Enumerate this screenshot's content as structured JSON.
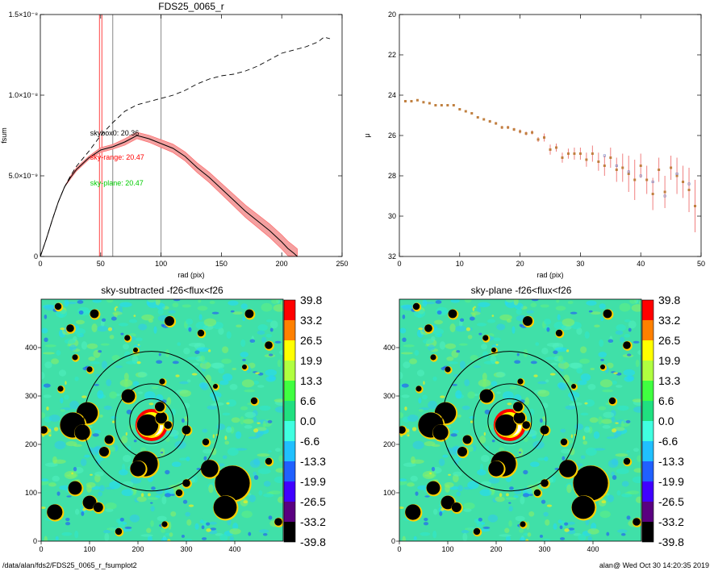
{
  "footer": {
    "path": "/data/alan/fds2/FDS25_0065_r_fsumplot2",
    "user_timestamp": "alan@  Wed Oct 30 14:20:35 2019"
  },
  "colors": {
    "profile": "#000000",
    "error_band": "#f4a0a0",
    "error_line": "#ff6060",
    "total": "#000000",
    "sky_range": "#ff0000",
    "sky_plane": "#00cc00",
    "skybox": "#000000",
    "mu_point_sky": "#c08040",
    "mu_err": "#f08080",
    "mu_point_plane": "#7080c0"
  },
  "chart_data": [
    {
      "type": "line",
      "title": "FDS25_0065_r",
      "xlabel": "rad (pix)",
      "ylabel": "fsum",
      "xlim": [
        0,
        250
      ],
      "ylim": [
        0,
        1.5e-08
      ],
      "x_ticks": [
        0,
        50,
        100,
        150,
        200,
        250
      ],
      "x_tick_labels": [
        "0",
        "50",
        "100",
        "150",
        "200",
        "250"
      ],
      "y_ticks": [
        0,
        5e-09,
        1e-08,
        1.5e-08
      ],
      "y_tick_labels": [
        "0",
        "5.0×10⁻⁹",
        "1.0×10⁻⁸",
        "1.5×10⁻⁸"
      ],
      "vertical_lines": [
        {
          "x": 49,
          "color": "#ff4444"
        },
        {
          "x": 51,
          "color": "#ff4444"
        },
        {
          "x": 60,
          "color": "#888888"
        },
        {
          "x": 100,
          "color": "#888888"
        }
      ],
      "annotations": [
        {
          "text": "skybox0: 20.36",
          "x": 58,
          "y": 7.5e-09,
          "color": "#000000"
        },
        {
          "text": "sky-range: 20.47",
          "x": 58,
          "y": 6e-09,
          "color": "#ff0000"
        },
        {
          "text": "sky-plane: 20.47",
          "x": 58,
          "y": 4.4e-09,
          "color": "#00cc00"
        }
      ],
      "series": [
        {
          "style": "dashed",
          "x": [
            0,
            5,
            10,
            15,
            20,
            25,
            30,
            40,
            50,
            60,
            70,
            80,
            90,
            100,
            110,
            120,
            130,
            140,
            150,
            160,
            170,
            180,
            190,
            200,
            210,
            220,
            230,
            235,
            240
          ],
          "y": [
            0,
            1.1e-09,
            2.3e-09,
            3.4e-09,
            4.3e-09,
            5e-09,
            5.6e-09,
            6.5e-09,
            7.5e-09,
            8.3e-09,
            9e-09,
            9.4e-09,
            9.6e-09,
            9.8e-09,
            1e-08,
            1.03e-08,
            1.07e-08,
            1.1e-08,
            1.12e-08,
            1.13e-08,
            1.15e-08,
            1.18e-08,
            1.22e-08,
            1.26e-08,
            1.28e-08,
            1.3e-08,
            1.33e-08,
            1.36e-08,
            1.35e-08
          ]
        },
        {
          "style": "solid",
          "x": [
            0,
            5,
            10,
            15,
            20,
            25,
            30,
            40,
            50,
            60,
            70,
            80,
            90,
            100,
            110,
            120,
            130,
            140,
            150,
            160,
            170,
            180,
            190,
            200,
            205,
            210,
            213
          ],
          "y": [
            0,
            1.1e-09,
            2.3e-09,
            3.4e-09,
            4.3e-09,
            4.9e-09,
            5.4e-09,
            6.1e-09,
            6.6e-09,
            6.8e-09,
            7.1e-09,
            7.5e-09,
            7.3e-09,
            7e-09,
            6.7e-09,
            6.2e-09,
            5.5e-09,
            4.9e-09,
            4.2e-09,
            3.5e-09,
            2.8e-09,
            2.2e-09,
            1.6e-09,
            9e-10,
            5e-10,
            2e-10,
            0
          ],
          "error": [
            0,
            0,
            0,
            0,
            0,
            1e-10,
            1e-10,
            1e-10,
            1.5e-10,
            1.5e-10,
            2e-10,
            2e-10,
            2.2e-10,
            2.4e-10,
            2.6e-10,
            2.8e-10,
            3e-10,
            3.2e-10,
            3.4e-10,
            3.6e-10,
            3.8e-10,
            4e-10,
            4.2e-10,
            4.4e-10,
            4.5e-10,
            4.6e-10,
            4.7e-10
          ]
        }
      ]
    },
    {
      "type": "scatter",
      "xlabel": "rad (pix)",
      "ylabel": "μ",
      "xlim": [
        0,
        50
      ],
      "ylim": [
        32,
        20
      ],
      "x_ticks": [
        0,
        10,
        20,
        30,
        40,
        50
      ],
      "y_ticks": [
        20,
        22,
        24,
        26,
        28,
        30,
        32
      ],
      "series": [
        {
          "x": [
            1,
            2,
            3,
            4,
            5,
            6,
            7,
            8,
            9,
            10,
            11,
            12,
            13,
            14,
            15,
            16,
            17,
            18,
            19,
            20,
            21,
            22,
            23,
            24,
            25,
            26,
            27,
            28,
            29,
            30,
            31,
            32,
            33,
            34,
            35,
            36,
            37,
            38,
            39,
            40,
            41,
            42,
            43,
            44,
            45,
            46,
            47,
            48,
            49
          ],
          "y": [
            24.3,
            24.3,
            24.25,
            24.35,
            24.4,
            24.5,
            24.5,
            24.5,
            24.5,
            24.7,
            24.8,
            24.9,
            25.1,
            25.2,
            25.3,
            25.4,
            25.6,
            25.6,
            25.7,
            25.8,
            25.9,
            25.85,
            26.2,
            26.1,
            26.7,
            26.6,
            27.1,
            26.9,
            26.9,
            26.9,
            27.2,
            26.9,
            27.3,
            27.5,
            27.1,
            27.7,
            27.6,
            27.9,
            28.2,
            27.5,
            28.2,
            28.9,
            27.7,
            28.8,
            27.6,
            28.0,
            28.3,
            28.7,
            29.5
          ],
          "err": [
            0.05,
            0.05,
            0.05,
            0.05,
            0.05,
            0.05,
            0.05,
            0.05,
            0.05,
            0.05,
            0.05,
            0.06,
            0.06,
            0.06,
            0.07,
            0.07,
            0.08,
            0.08,
            0.08,
            0.1,
            0.1,
            0.1,
            0.12,
            0.2,
            0.25,
            0.2,
            0.25,
            0.25,
            0.3,
            0.3,
            0.35,
            0.4,
            0.45,
            0.5,
            0.5,
            0.6,
            0.7,
            0.9,
            1.0,
            0.6,
            0.7,
            0.8,
            0.6,
            0.8,
            0.6,
            0.9,
            0.8,
            1.1,
            1.3
          ]
        },
        {
          "x": [
            34,
            36,
            38,
            40,
            42,
            44,
            46,
            48
          ],
          "y": [
            27.0,
            27.5,
            27.8,
            28.0,
            28.3,
            29.0,
            27.9,
            28.4
          ]
        }
      ]
    },
    {
      "type": "heatmap",
      "title": "sky-subtracted -f26<flux<f26",
      "xlim": [
        0,
        500
      ],
      "ylim": [
        0,
        500
      ],
      "x_ticks": [
        0,
        100,
        200,
        300,
        400
      ],
      "y_ticks": [
        0,
        100,
        200,
        300,
        400
      ],
      "colorbar": {
        "labels": [
          "39.8",
          "33.2",
          "26.5",
          "19.9",
          "13.3",
          "6.6",
          "0.0",
          "-6.6",
          "-13.3",
          "-19.9",
          "-26.5",
          "-33.2",
          "-39.8"
        ],
        "colors": [
          "#ff0000",
          "#ff8000",
          "#ffff00",
          "#b0ff40",
          "#40ff40",
          "#20e080",
          "#40ffe0",
          "#20c0ff",
          "#2060ff",
          "#4000ff",
          "#5a0080",
          "#000000"
        ]
      }
    },
    {
      "type": "heatmap",
      "title": "sky-plane -f26<flux<f26",
      "xlim": [
        0,
        500
      ],
      "ylim": [
        0,
        500
      ],
      "x_ticks": [
        0,
        100,
        200,
        300,
        400
      ],
      "y_ticks": [
        0,
        100,
        200,
        300,
        400
      ],
      "colorbar": {
        "labels": [
          "39.8",
          "33.2",
          "26.5",
          "19.9",
          "13.3",
          "6.6",
          "0.0",
          "-6.6",
          "-13.3",
          "-19.9",
          "-26.5",
          "-33.2",
          "-39.8"
        ],
        "colors": [
          "#ff0000",
          "#ff8000",
          "#ffff00",
          "#b0ff40",
          "#40ff40",
          "#20e080",
          "#40ffe0",
          "#20c0ff",
          "#2060ff",
          "#4000ff",
          "#5a0080",
          "#000000"
        ]
      }
    }
  ],
  "sources": [
    {
      "x": 220,
      "y": 240,
      "r": 22
    },
    {
      "x": 248,
      "y": 255,
      "r": 12
    },
    {
      "x": 180,
      "y": 300,
      "r": 14
    },
    {
      "x": 245,
      "y": 278,
      "r": 10
    },
    {
      "x": 262,
      "y": 240,
      "r": 8
    },
    {
      "x": 215,
      "y": 160,
      "r": 26
    },
    {
      "x": 200,
      "y": 150,
      "r": 16
    },
    {
      "x": 95,
      "y": 265,
      "r": 22
    },
    {
      "x": 65,
      "y": 240,
      "r": 26
    },
    {
      "x": 85,
      "y": 225,
      "r": 16
    },
    {
      "x": 395,
      "y": 120,
      "r": 36
    },
    {
      "x": 380,
      "y": 70,
      "r": 24
    },
    {
      "x": 348,
      "y": 150,
      "r": 18
    },
    {
      "x": 70,
      "y": 110,
      "r": 14
    },
    {
      "x": 100,
      "y": 80,
      "r": 14
    },
    {
      "x": 28,
      "y": 60,
      "r": 16
    },
    {
      "x": 118,
      "y": 70,
      "r": 10
    },
    {
      "x": 60,
      "y": 440,
      "r": 8
    },
    {
      "x": 110,
      "y": 470,
      "r": 9
    },
    {
      "x": 35,
      "y": 485,
      "r": 7
    },
    {
      "x": 265,
      "y": 455,
      "r": 10
    },
    {
      "x": 330,
      "y": 430,
      "r": 7
    },
    {
      "x": 178,
      "y": 420,
      "r": 6
    },
    {
      "x": 430,
      "y": 470,
      "r": 9
    },
    {
      "x": 470,
      "y": 405,
      "r": 8
    },
    {
      "x": 140,
      "y": 210,
      "r": 9
    },
    {
      "x": 300,
      "y": 230,
      "r": 9
    },
    {
      "x": 340,
      "y": 205,
      "r": 7
    },
    {
      "x": 440,
      "y": 290,
      "r": 7
    },
    {
      "x": 130,
      "y": 185,
      "r": 10
    },
    {
      "x": 250,
      "y": 330,
      "r": 6
    },
    {
      "x": 100,
      "y": 355,
      "r": 6
    },
    {
      "x": 300,
      "y": 120,
      "r": 8
    },
    {
      "x": 285,
      "y": 100,
      "r": 7
    },
    {
      "x": 470,
      "y": 165,
      "r": 7
    },
    {
      "x": 490,
      "y": 40,
      "r": 8
    },
    {
      "x": 160,
      "y": 20,
      "r": 7
    },
    {
      "x": 255,
      "y": 35,
      "r": 6
    },
    {
      "x": 40,
      "y": 315,
      "r": 6
    },
    {
      "x": 5,
      "y": 230,
      "r": 8
    },
    {
      "x": 70,
      "y": 380,
      "r": 6
    },
    {
      "x": 195,
      "y": 395,
      "r": 5
    },
    {
      "x": 360,
      "y": 320,
      "r": 5
    },
    {
      "x": 420,
      "y": 360,
      "r": 5
    }
  ],
  "aperture_rings": [
    45,
    75,
    140
  ]
}
